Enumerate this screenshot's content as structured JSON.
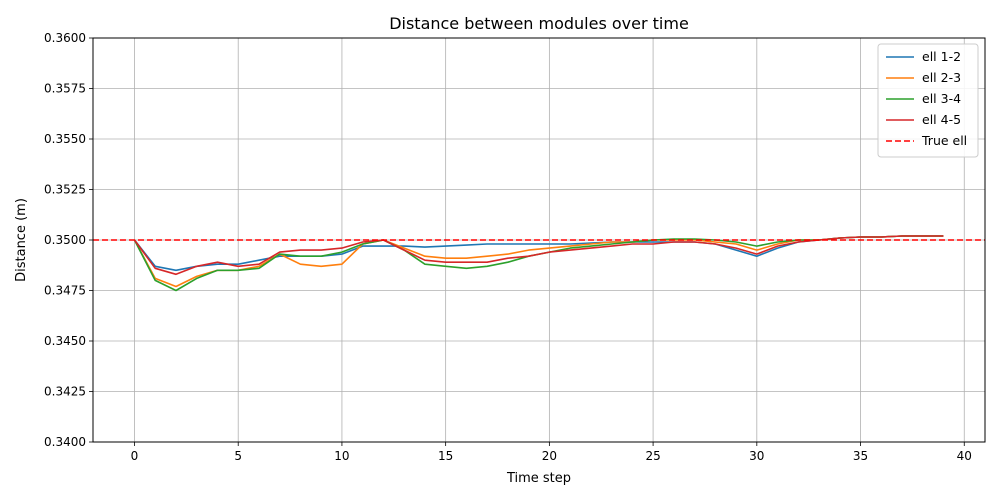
{
  "chart_data": {
    "type": "line",
    "title": "Distance between modules over time",
    "xlabel": "Time step",
    "ylabel": "Distance (m)",
    "xlim": [
      -2,
      41
    ],
    "ylim": [
      0.34,
      0.36
    ],
    "x_ticks": [
      0,
      5,
      10,
      15,
      20,
      25,
      30,
      35,
      40
    ],
    "x_tick_labels": [
      "0",
      "5",
      "10",
      "15",
      "20",
      "25",
      "30",
      "35",
      "40"
    ],
    "y_ticks": [
      0.34,
      0.3425,
      0.345,
      0.3475,
      0.35,
      0.3525,
      0.355,
      0.3575,
      0.36
    ],
    "y_tick_labels": [
      "0.3400",
      "0.3425",
      "0.3450",
      "0.3475",
      "0.3500",
      "0.3525",
      "0.3550",
      "0.3575",
      "0.3600"
    ],
    "grid": true,
    "legend_position": "top-right",
    "x": [
      0,
      1,
      2,
      3,
      4,
      5,
      6,
      7,
      8,
      9,
      10,
      11,
      12,
      13,
      14,
      15,
      16,
      17,
      18,
      19,
      20,
      21,
      22,
      23,
      24,
      25,
      26,
      27,
      28,
      29,
      30,
      31,
      32,
      33,
      34,
      35,
      36,
      37,
      38,
      39
    ],
    "series": [
      {
        "name": "ell 1-2",
        "color": "#1f77b4",
        "dash": "solid",
        "values": [
          0.35,
          0.3487,
          0.3485,
          0.3487,
          0.3488,
          0.3488,
          0.349,
          0.3492,
          0.3492,
          0.3492,
          0.3493,
          0.3497,
          0.3497,
          0.3497,
          0.34965,
          0.3497,
          0.34975,
          0.3498,
          0.3498,
          0.3498,
          0.3498,
          0.3498,
          0.34985,
          0.3499,
          0.3499,
          0.3499,
          0.3499,
          0.3499,
          0.3498,
          0.3495,
          0.3492,
          0.3496,
          0.3499,
          0.35,
          0.3501,
          0.35015,
          0.35015,
          0.3502,
          0.3502,
          0.3502
        ]
      },
      {
        "name": "ell 2-3",
        "color": "#ff7f0e",
        "dash": "solid",
        "values": [
          0.35,
          0.3481,
          0.3477,
          0.3482,
          0.3485,
          0.3485,
          0.3487,
          0.3493,
          0.3488,
          0.3487,
          0.3488,
          0.3498,
          0.35,
          0.3496,
          0.3492,
          0.3491,
          0.3491,
          0.3492,
          0.3493,
          0.3495,
          0.3496,
          0.3497,
          0.3498,
          0.3499,
          0.3499,
          0.35,
          0.35,
          0.35,
          0.3499,
          0.3498,
          0.3495,
          0.3498,
          0.35,
          0.35,
          0.3501,
          0.35015,
          0.35015,
          0.3502,
          0.3502,
          0.3502
        ]
      },
      {
        "name": "ell 3-4",
        "color": "#2ca02c",
        "dash": "solid",
        "values": [
          0.35,
          0.348,
          0.3475,
          0.3481,
          0.3485,
          0.3485,
          0.3486,
          0.3493,
          0.3492,
          0.3492,
          0.3494,
          0.3498,
          0.35,
          0.3495,
          0.3488,
          0.3487,
          0.3486,
          0.3487,
          0.3489,
          0.3492,
          0.3494,
          0.3496,
          0.3497,
          0.3498,
          0.3499,
          0.35,
          0.35005,
          0.35005,
          0.35,
          0.3499,
          0.3497,
          0.3499,
          0.35,
          0.35,
          0.3501,
          0.35015,
          0.35015,
          0.3502,
          0.3502,
          0.3502
        ]
      },
      {
        "name": "ell 4-5",
        "color": "#d62728",
        "dash": "solid",
        "values": [
          0.35,
          0.3486,
          0.3483,
          0.3487,
          0.3489,
          0.3487,
          0.3488,
          0.3494,
          0.3495,
          0.3495,
          0.3496,
          0.3499,
          0.35,
          0.3495,
          0.349,
          0.3489,
          0.3489,
          0.3489,
          0.3491,
          0.3492,
          0.3494,
          0.3495,
          0.3496,
          0.3497,
          0.3498,
          0.3498,
          0.3499,
          0.3499,
          0.3498,
          0.3496,
          0.3493,
          0.3497,
          0.3499,
          0.35,
          0.3501,
          0.35015,
          0.35015,
          0.3502,
          0.3502,
          0.3502
        ]
      },
      {
        "name": "True ell",
        "color": "#ff0000",
        "dash": "dashed",
        "constant": 0.35
      }
    ]
  }
}
